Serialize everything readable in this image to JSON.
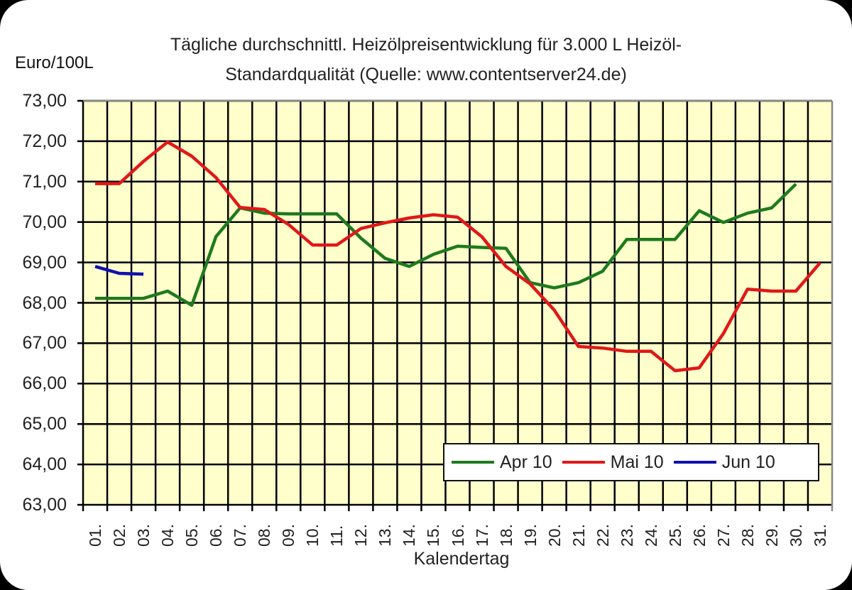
{
  "title_line1": "Tägliche durchschnittl. Heizölpreisentwicklung für 3.000 L Heizöl-",
  "title_line2": "Standardqualität (Quelle: www.contentserver24.de)",
  "y_axis_label": "Euro/100L",
  "x_axis_label": "Kalendertag",
  "y_ticks": [
    "73,00",
    "72,00",
    "71,00",
    "70,00",
    "69,00",
    "68,00",
    "67,00",
    "66,00",
    "65,00",
    "64,00",
    "63,00"
  ],
  "x_ticks": [
    "01.",
    "02.",
    "03.",
    "04.",
    "05.",
    "06.",
    "07.",
    "08.",
    "09.",
    "10.",
    "11.",
    "12.",
    "13.",
    "14.",
    "15.",
    "16.",
    "17.",
    "18.",
    "19.",
    "20.",
    "21.",
    "22.",
    "23.",
    "24.",
    "25.",
    "26.",
    "27.",
    "28.",
    "29.",
    "30.",
    "31."
  ],
  "legend": [
    {
      "label": "Apr 10",
      "color": "#1e7a1e"
    },
    {
      "label": "Mai 10",
      "color": "#e01818"
    },
    {
      "label": "Jun 10",
      "color": "#1010b0"
    }
  ],
  "colors": {
    "plot_bg": "#ffffcc",
    "grid": "#000000"
  },
  "chart_data": {
    "type": "line",
    "title": "Tägliche durchschnittl. Heizölpreisentwicklung für 3.000 L Heizöl-Standardqualität (Quelle: www.contentserver24.de)",
    "xlabel": "Kalendertag",
    "ylabel": "Euro/100L",
    "ylim": [
      63,
      73
    ],
    "grid": true,
    "legend_position": "lower right (inside)",
    "x": [
      1,
      2,
      3,
      4,
      5,
      6,
      7,
      8,
      9,
      10,
      11,
      12,
      13,
      14,
      15,
      16,
      17,
      18,
      19,
      20,
      21,
      22,
      23,
      24,
      25,
      26,
      27,
      28,
      29,
      30,
      31
    ],
    "series": [
      {
        "name": "Apr 10",
        "color": "#1e7a1e",
        "values": [
          68.11,
          68.11,
          68.11,
          68.29,
          67.94,
          69.64,
          70.35,
          70.22,
          70.2,
          70.2,
          70.2,
          69.6,
          69.1,
          68.9,
          69.2,
          69.4,
          69.37,
          69.35,
          68.5,
          68.37,
          68.5,
          68.78,
          69.57,
          69.57,
          69.57,
          70.28,
          69.99,
          70.22,
          70.35,
          70.94
        ]
      },
      {
        "name": "Mai 10",
        "color": "#e01818",
        "values": [
          70.95,
          70.95,
          71.5,
          71.98,
          71.63,
          71.1,
          70.36,
          70.31,
          69.94,
          69.43,
          69.43,
          69.84,
          69.98,
          70.1,
          70.18,
          70.12,
          69.64,
          68.9,
          68.47,
          67.82,
          66.92,
          66.88,
          66.8,
          66.8,
          66.32,
          66.39,
          67.24,
          68.34,
          68.29,
          68.29,
          68.99
        ]
      },
      {
        "name": "Jun 10",
        "color": "#1010b0",
        "values": [
          68.9,
          68.73,
          68.71
        ]
      }
    ]
  }
}
